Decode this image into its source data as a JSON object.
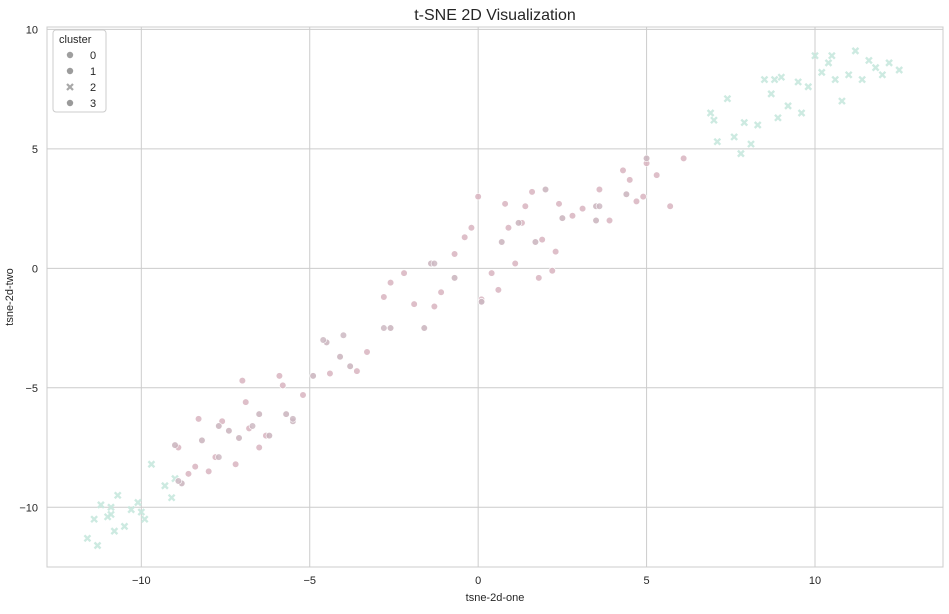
{
  "chart_data": {
    "type": "scatter",
    "title": "t-SNE 2D Visualization",
    "xlabel": "tsne-2d-one",
    "ylabel": "tsne-2d-two",
    "xlim": [
      -12.8,
      13.8
    ],
    "ylim": [
      -12.5,
      10.1
    ],
    "xticks": [
      -10,
      -5,
      0,
      5,
      10
    ],
    "xtick_labels": [
      "−10",
      "−5",
      "0",
      "5",
      "10"
    ],
    "yticks": [
      -10,
      -5,
      0,
      5,
      10
    ],
    "ytick_labels": [
      "−10",
      "−5",
      "0",
      "5",
      "10"
    ],
    "grid": true,
    "legend": {
      "title": "cluster",
      "placement": "top-left",
      "entries": [
        "0",
        "1",
        "2",
        "3"
      ]
    },
    "colors": {
      "cluster_0": "#9f9f9f",
      "cluster_1": "#9c9c9c",
      "cluster_2": "#a8a8a8",
      "cluster_3": "#9a9a9a"
    },
    "series": [
      {
        "name": "0",
        "color": "#d8b4bf",
        "marker": "circle",
        "points": [
          [
            -8.9,
            -7.5
          ],
          [
            -8.6,
            -8.6
          ],
          [
            -8.4,
            -8.3
          ],
          [
            -8.3,
            -6.3
          ],
          [
            -8.0,
            -8.5
          ],
          [
            -7.8,
            -7.9
          ],
          [
            -7.6,
            -6.4
          ],
          [
            -7.2,
            -8.2
          ],
          [
            -7.0,
            -4.7
          ],
          [
            -6.9,
            -5.6
          ],
          [
            -6.8,
            -6.7
          ],
          [
            -6.5,
            -7.5
          ],
          [
            -6.3,
            -7.0
          ],
          [
            -5.9,
            -4.5
          ],
          [
            -5.8,
            -4.9
          ],
          [
            -5.2,
            -5.3
          ],
          [
            -4.4,
            -4.4
          ],
          [
            -3.6,
            -4.3
          ],
          [
            -3.3,
            -3.5
          ],
          [
            -2.8,
            -1.2
          ],
          [
            -2.6,
            -0.6
          ],
          [
            -2.2,
            -0.2
          ],
          [
            -1.9,
            -1.5
          ],
          [
            -1.3,
            -1.6
          ],
          [
            -1.1,
            -1.0
          ],
          [
            -0.7,
            0.6
          ],
          [
            -0.4,
            1.3
          ],
          [
            0.0,
            3.0
          ],
          [
            0.1,
            -1.3
          ],
          [
            0.4,
            -0.2
          ],
          [
            0.6,
            -0.9
          ],
          [
            0.8,
            2.7
          ],
          [
            0.9,
            1.7
          ],
          [
            1.1,
            0.2
          ],
          [
            1.3,
            1.9
          ],
          [
            1.4,
            2.6
          ],
          [
            1.6,
            3.2
          ],
          [
            1.8,
            -0.4
          ],
          [
            1.9,
            1.2
          ],
          [
            2.2,
            -0.1
          ],
          [
            2.3,
            0.7
          ],
          [
            2.4,
            2.7
          ],
          [
            3.1,
            2.5
          ],
          [
            3.6,
            3.3
          ],
          [
            3.9,
            2.0
          ],
          [
            4.3,
            4.1
          ],
          [
            4.5,
            3.7
          ],
          [
            4.7,
            2.8
          ],
          [
            5.0,
            4.4
          ],
          [
            5.3,
            3.9
          ],
          [
            5.7,
            2.6
          ],
          [
            6.1,
            4.6
          ],
          [
            -0.2,
            1.7
          ],
          [
            2.8,
            2.2
          ],
          [
            4.9,
            3.0
          ]
        ]
      },
      {
        "name": "1",
        "color": "#c9b3bc",
        "marker": "circle",
        "points": [
          [
            -9.0,
            -7.4
          ],
          [
            -8.8,
            -9.0
          ],
          [
            -8.2,
            -7.2
          ],
          [
            -7.7,
            -6.6
          ],
          [
            -7.4,
            -6.8
          ],
          [
            -7.1,
            -7.1
          ],
          [
            -6.5,
            -6.1
          ],
          [
            -6.2,
            -7.0
          ],
          [
            -5.7,
            -6.1
          ],
          [
            -5.5,
            -6.4
          ],
          [
            -4.9,
            -4.5
          ],
          [
            -4.5,
            -3.1
          ],
          [
            -4.1,
            -3.7
          ],
          [
            -3.8,
            -4.1
          ],
          [
            -2.6,
            -2.5
          ],
          [
            -1.6,
            -2.5
          ],
          [
            -1.4,
            0.2
          ],
          [
            -0.7,
            -0.4
          ],
          [
            0.1,
            -1.4
          ],
          [
            0.7,
            1.1
          ],
          [
            1.2,
            1.9
          ],
          [
            1.7,
            1.1
          ],
          [
            2.0,
            3.3
          ],
          [
            2.5,
            2.1
          ],
          [
            3.5,
            2.0
          ],
          [
            3.5,
            2.6
          ],
          [
            4.4,
            3.1
          ],
          [
            5.0,
            4.6
          ]
        ]
      },
      {
        "name": "2",
        "color": "#c8e8de",
        "marker": "x",
        "points": [
          [
            -11.6,
            -11.3
          ],
          [
            -11.4,
            -10.5
          ],
          [
            -11.2,
            -9.9
          ],
          [
            -11.0,
            -10.4
          ],
          [
            -10.9,
            -10.0
          ],
          [
            -10.8,
            -11.0
          ],
          [
            -10.7,
            -9.5
          ],
          [
            -10.5,
            -10.8
          ],
          [
            -10.3,
            -10.1
          ],
          [
            -10.1,
            -9.8
          ],
          [
            -9.9,
            -10.5
          ],
          [
            -9.7,
            -8.2
          ],
          [
            -9.3,
            -9.1
          ],
          [
            -9.0,
            -8.8
          ],
          [
            -11.3,
            -11.6
          ],
          [
            -10.9,
            -10.3
          ],
          [
            -10.0,
            -10.2
          ],
          [
            -9.1,
            -9.6
          ],
          [
            6.9,
            6.5
          ],
          [
            7.1,
            5.3
          ],
          [
            7.4,
            7.1
          ],
          [
            7.6,
            5.5
          ],
          [
            7.9,
            6.1
          ],
          [
            8.1,
            5.2
          ],
          [
            8.3,
            6.0
          ],
          [
            8.5,
            7.9
          ],
          [
            8.7,
            7.3
          ],
          [
            8.9,
            6.3
          ],
          [
            9.0,
            8.0
          ],
          [
            9.2,
            6.8
          ],
          [
            9.5,
            7.8
          ],
          [
            9.8,
            7.6
          ],
          [
            10.0,
            8.9
          ],
          [
            10.2,
            8.2
          ],
          [
            10.4,
            8.6
          ],
          [
            10.6,
            7.9
          ],
          [
            10.8,
            7.0
          ],
          [
            11.0,
            8.1
          ],
          [
            11.2,
            9.1
          ],
          [
            11.4,
            7.9
          ],
          [
            11.6,
            8.7
          ],
          [
            11.8,
            8.4
          ],
          [
            12.0,
            8.1
          ],
          [
            12.2,
            8.6
          ],
          [
            12.5,
            8.3
          ],
          [
            7.0,
            6.2
          ],
          [
            7.8,
            4.8
          ],
          [
            8.8,
            7.9
          ],
          [
            9.6,
            6.5
          ],
          [
            10.5,
            8.9
          ]
        ]
      },
      {
        "name": "3",
        "color": "#cdb8c2",
        "marker": "circle",
        "points": [
          [
            -8.9,
            -8.9
          ],
          [
            -7.7,
            -7.9
          ],
          [
            -6.7,
            -6.6
          ],
          [
            -5.5,
            -6.3
          ],
          [
            -4.6,
            -3.0
          ],
          [
            -4.0,
            -2.8
          ],
          [
            -2.8,
            -2.5
          ],
          [
            -1.3,
            0.2
          ],
          [
            0.1,
            -1.4
          ],
          [
            3.6,
            2.6
          ]
        ]
      }
    ]
  }
}
